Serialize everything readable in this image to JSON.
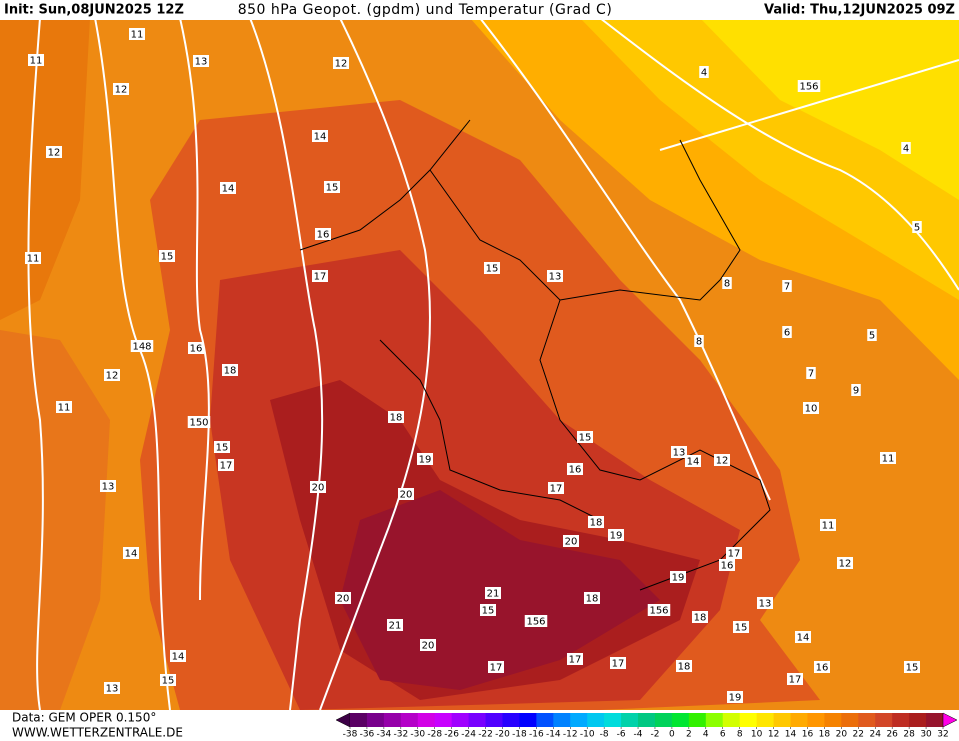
{
  "header": {
    "init": "Init: Sun,08JUN2025 12Z",
    "title": "850 hPa Geopot. (gpdm) und Temperatur (Grad C)",
    "valid": "Valid: Thu,12JUN2025 09Z"
  },
  "footer": {
    "data": "Data: GEM OPER 0.150°",
    "site": "WWW.WETTERZENTRALE.DE"
  },
  "colorbar": {
    "ticks": [
      -38,
      -36,
      -34,
      -32,
      -30,
      -28,
      -26,
      -24,
      -22,
      -20,
      -18,
      -16,
      -14,
      -12,
      -10,
      -8,
      -6,
      -4,
      -2,
      0,
      2,
      4,
      6,
      8,
      10,
      12,
      14,
      16,
      18,
      20,
      22,
      24,
      26,
      28,
      30,
      32
    ],
    "colors": [
      "#3c0046",
      "#5a0064",
      "#78008c",
      "#9600aa",
      "#b400c8",
      "#d200e6",
      "#c800ff",
      "#a000ff",
      "#7800ff",
      "#5000ff",
      "#2800ff",
      "#0000ff",
      "#0050ff",
      "#0082ff",
      "#00aaff",
      "#00c8f0",
      "#00dcdc",
      "#00d2aa",
      "#00c882",
      "#00d25a",
      "#00e632",
      "#32f000",
      "#8cff00",
      "#d2ff00",
      "#ffff00",
      "#ffe600",
      "#ffc800",
      "#ffaa00",
      "#ff9600",
      "#f58200",
      "#eb6e0a",
      "#e05a1e",
      "#d24628",
      "#be2d23",
      "#aa1e1e",
      "#96142d",
      "#b40046",
      "#d2005a",
      "#e6006e",
      "#f5008c",
      "#ff00aa",
      "#ff00c8",
      "#ff00e6"
    ]
  },
  "map": {
    "contour_labels": [
      11,
      11,
      13,
      12,
      12,
      12,
      14,
      14,
      15,
      16,
      11,
      15,
      17,
      15,
      13,
      148,
      12,
      16,
      18,
      11,
      150,
      15,
      17,
      18,
      19,
      20,
      20,
      13,
      15,
      16,
      17,
      18,
      20,
      19,
      14,
      20,
      21,
      15,
      156,
      156,
      21,
      20,
      15,
      17,
      17,
      18,
      17,
      14,
      15,
      13,
      15,
      156,
      5,
      5,
      10,
      11,
      11,
      12,
      13,
      14,
      16,
      17,
      19,
      4,
      4,
      7,
      7,
      9,
      8,
      6,
      8,
      13,
      14,
      12,
      17,
      16,
      19,
      18,
      18
    ]
  }
}
